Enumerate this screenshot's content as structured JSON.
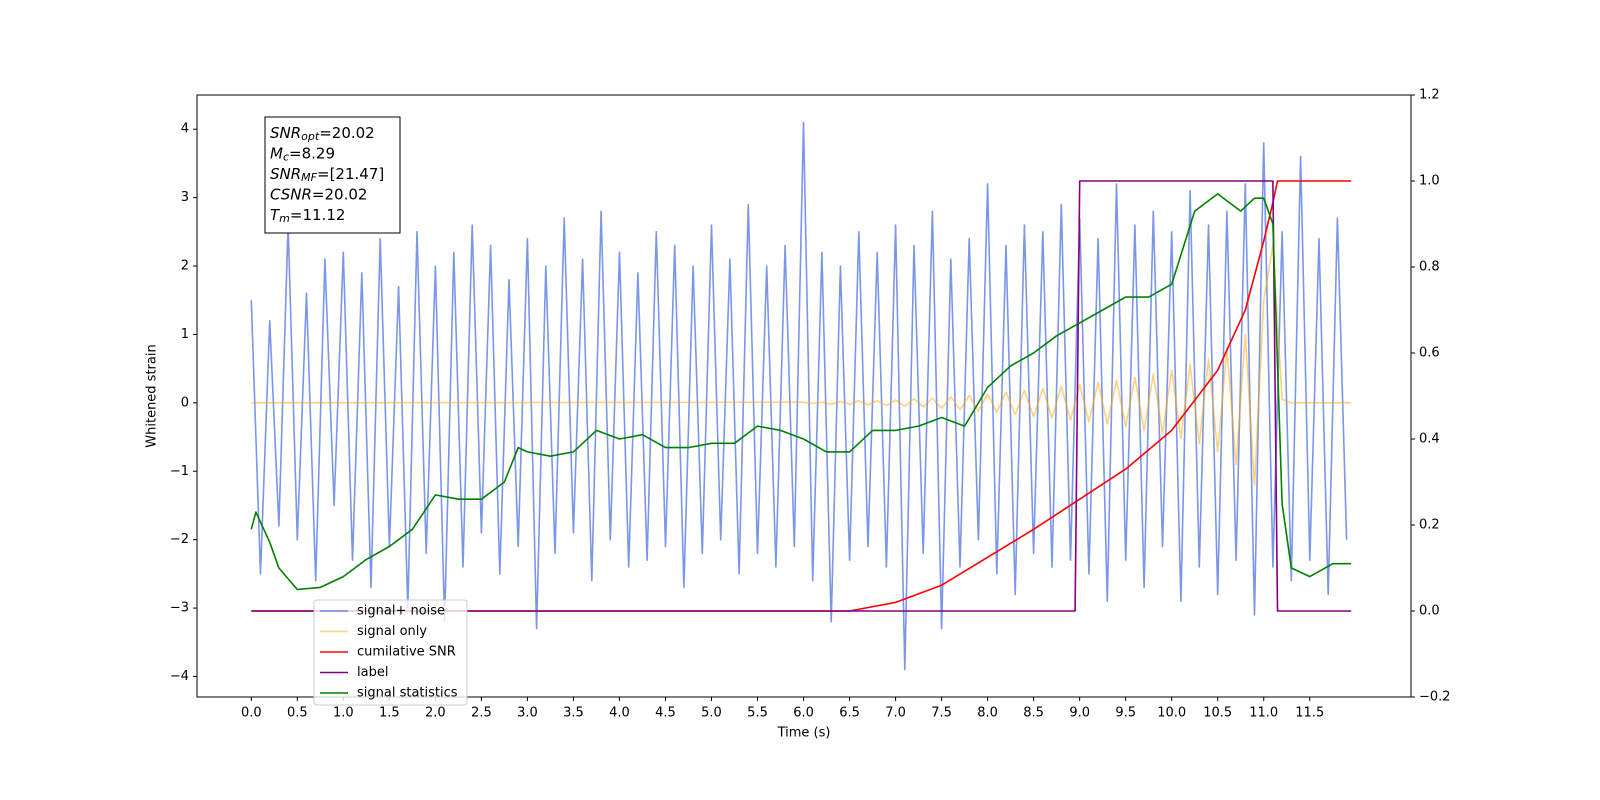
{
  "chart_data": {
    "type": "line",
    "xlabel": "Time (s)",
    "ylabel": "Whitened strain",
    "xlim": [
      -0.59,
      12.6
    ],
    "ylim": [
      -4.3,
      4.5
    ],
    "y2lim": [
      -0.2,
      1.2
    ],
    "xticks": [
      {
        "value": 0,
        "label": "0.0"
      },
      0.5,
      {
        "value": 1,
        "label": "1.0"
      },
      1.5,
      {
        "value": 2,
        "label": "2.0"
      },
      2.5,
      {
        "value": 3,
        "label": "3.0"
      },
      3.5,
      {
        "value": 4,
        "label": "4.0"
      },
      4.5,
      {
        "value": 5,
        "label": "5.0"
      },
      5.5,
      {
        "value": 6,
        "label": "6.0"
      },
      6.5,
      {
        "value": 7,
        "label": "7.0"
      },
      7.5,
      {
        "value": 8,
        "label": "8.0"
      },
      8.5,
      {
        "value": 9,
        "label": "9.0"
      },
      9.5,
      {
        "value": 10,
        "label": "10.0"
      },
      10.5,
      {
        "value": 11,
        "label": "11.0"
      },
      11.5
    ],
    "yticks": [
      {
        "value": -4,
        "label": "−4"
      },
      {
        "value": -3,
        "label": "−3"
      },
      {
        "value": -2,
        "label": "−2"
      },
      {
        "value": -1,
        "label": "−1"
      },
      0,
      1,
      2,
      3,
      4
    ],
    "y2ticks": [
      {
        "value": -0.2,
        "label": "−0.2"
      },
      {
        "value": 0,
        "label": "0.0"
      },
      0.2,
      0.4,
      0.6,
      0.8,
      {
        "value": 1,
        "label": "1.0"
      },
      1.2
    ],
    "legend": "lower left",
    "annotation": [
      {
        "name": "SNR",
        "sub": "opt",
        "text": "=20.02"
      },
      {
        "name": "M",
        "sub": "c",
        "text": "=8.29"
      },
      {
        "name": "SNR",
        "sub": "MF",
        "text": "=[21.47]"
      },
      {
        "name": "CSNR",
        "sub": "",
        "text": "=20.02"
      },
      {
        "name": "T",
        "sub": "m",
        "text": "=11.12"
      }
    ],
    "series": [
      {
        "name": "signal+ noise",
        "color": "#4169e1",
        "alpha": 0.7,
        "axis": "y",
        "x": [
          0,
          0.1,
          0.2,
          0.3,
          0.4,
          0.5,
          0.6,
          0.7,
          0.8,
          0.9,
          1,
          1.1,
          1.2,
          1.3,
          1.4,
          1.5,
          1.6,
          1.7,
          1.8,
          1.9,
          2,
          2.1,
          2.2,
          2.3,
          2.4,
          2.5,
          2.6,
          2.7,
          2.8,
          2.9,
          3,
          3.1,
          3.2,
          3.3,
          3.4,
          3.5,
          3.6,
          3.7,
          3.8,
          3.9,
          4,
          4.1,
          4.2,
          4.3,
          4.4,
          4.5,
          4.6,
          4.7,
          4.8,
          4.9,
          5,
          5.1,
          5.2,
          5.3,
          5.4,
          5.5,
          5.6,
          5.7,
          5.8,
          5.9,
          6,
          6.1,
          6.2,
          6.3,
          6.4,
          6.5,
          6.6,
          6.7,
          6.8,
          6.9,
          7,
          7.1,
          7.2,
          7.3,
          7.4,
          7.5,
          7.6,
          7.7,
          7.8,
          7.9,
          8,
          8.1,
          8.2,
          8.3,
          8.4,
          8.5,
          8.6,
          8.7,
          8.8,
          8.9,
          9,
          9.1,
          9.2,
          9.3,
          9.4,
          9.5,
          9.6,
          9.7,
          9.8,
          9.9,
          10,
          10.1,
          10.2,
          10.3,
          10.4,
          10.5,
          10.6,
          10.7,
          10.8,
          10.9,
          11,
          11.1,
          11.2,
          11.3,
          11.4,
          11.5,
          11.6,
          11.7,
          11.8,
          11.9
        ],
        "values": [
          1.5,
          -2.5,
          1.2,
          -1.8,
          2.6,
          -2.0,
          1.6,
          -2.6,
          2.1,
          -1.5,
          2.2,
          -2.3,
          1.9,
          -2.7,
          2.4,
          -2.1,
          1.7,
          -3.0,
          2.5,
          -2.2,
          2.0,
          -3.2,
          2.2,
          -2.4,
          2.6,
          -1.9,
          2.3,
          -2.5,
          1.8,
          -2.1,
          2.4,
          -3.3,
          2.0,
          -2.2,
          2.7,
          -1.9,
          2.1,
          -2.6,
          2.8,
          -2.0,
          2.2,
          -2.4,
          1.9,
          -2.3,
          2.5,
          -2.1,
          2.3,
          -2.7,
          2.0,
          -2.2,
          2.6,
          -2.0,
          2.1,
          -2.5,
          2.9,
          -2.2,
          2.0,
          -2.4,
          2.3,
          -2.1,
          4.1,
          -2.6,
          2.2,
          -3.2,
          2.0,
          -2.3,
          2.5,
          -2.1,
          2.2,
          -2.4,
          2.6,
          -3.9,
          2.3,
          -2.2,
          2.8,
          -3.3,
          2.1,
          -2.4,
          2.4,
          -2.0,
          3.2,
          -2.5,
          2.3,
          -2.8,
          2.6,
          -2.2,
          2.5,
          -2.4,
          2.9,
          -2.3,
          2.7,
          -2.5,
          2.4,
          -2.9,
          3.2,
          -2.3,
          2.6,
          -2.7,
          2.8,
          -2.1,
          2.5,
          -2.9,
          3.1,
          -2.4,
          2.6,
          -2.8,
          2.8,
          -2.3,
          3.2,
          -3.1,
          3.8,
          -2.4,
          2.5,
          -2.6,
          3.6,
          -2.3,
          2.4,
          -2.8,
          2.7,
          -2.0
        ]
      },
      {
        "name": "signal only",
        "color": "#ffa500",
        "alpha": 0.5,
        "axis": "y",
        "x": [
          0,
          6,
          6.1,
          6.2,
          6.3,
          6.4,
          6.5,
          6.6,
          6.7,
          6.8,
          6.9,
          7,
          7.1,
          7.2,
          7.3,
          7.4,
          7.5,
          7.6,
          7.7,
          7.8,
          7.9,
          8,
          8.1,
          8.2,
          8.3,
          8.4,
          8.5,
          8.6,
          8.7,
          8.8,
          8.9,
          9,
          9.1,
          9.2,
          9.3,
          9.4,
          9.5,
          9.6,
          9.7,
          9.8,
          9.9,
          10,
          10.1,
          10.2,
          10.3,
          10.4,
          10.5,
          10.6,
          10.7,
          10.8,
          10.9,
          11,
          11.1,
          11.2,
          11.3,
          11.95
        ],
        "values": [
          0,
          0.01,
          -0.01,
          0.01,
          -0.02,
          0.02,
          -0.02,
          0.03,
          -0.03,
          0.03,
          -0.04,
          0.04,
          -0.05,
          0.06,
          -0.06,
          0.07,
          -0.08,
          0.09,
          -0.1,
          0.11,
          -0.12,
          0.13,
          -0.14,
          0.16,
          -0.17,
          0.18,
          -0.2,
          0.21,
          -0.22,
          0.24,
          -0.25,
          0.27,
          -0.28,
          0.3,
          -0.31,
          0.33,
          -0.35,
          0.37,
          -0.4,
          0.42,
          -0.45,
          0.48,
          -0.52,
          0.56,
          -0.6,
          0.65,
          -0.72,
          0.8,
          -0.9,
          1.0,
          -1.2,
          1.5,
          2.3,
          0.05,
          0,
          0
        ]
      },
      {
        "name": "cumilative SNR",
        "color": "#ff0000",
        "alpha": 1,
        "axis": "y2",
        "x": [
          0,
          6.5,
          7,
          7.5,
          8,
          8.5,
          9,
          9.5,
          10,
          10.5,
          10.8,
          11,
          11.1,
          11.15,
          11.95
        ],
        "values": [
          0,
          0,
          0.02,
          0.06,
          0.125,
          0.19,
          0.26,
          0.33,
          0.42,
          0.56,
          0.7,
          0.86,
          0.95,
          1,
          1
        ]
      },
      {
        "name": "label",
        "color": "#800080",
        "alpha": 1,
        "axis": "y2",
        "x": [
          0,
          8.95,
          9,
          11.1,
          11.15,
          11.95
        ],
        "values": [
          0,
          0,
          1,
          1,
          0,
          0
        ]
      },
      {
        "name": "signal statistics",
        "color": "#008000",
        "alpha": 1,
        "axis": "y2",
        "x": [
          0,
          0.05,
          0.2,
          0.3,
          0.5,
          0.75,
          1,
          1.25,
          1.5,
          1.75,
          2,
          2.25,
          2.5,
          2.75,
          2.9,
          3,
          3.25,
          3.5,
          3.75,
          4,
          4.25,
          4.5,
          4.75,
          5,
          5.25,
          5.5,
          5.75,
          6,
          6.25,
          6.5,
          6.75,
          7,
          7.25,
          7.5,
          7.75,
          8,
          8.25,
          8.5,
          8.75,
          9,
          9.25,
          9.5,
          9.75,
          10,
          10.25,
          10.5,
          10.75,
          10.9,
          11,
          11.1,
          11.2,
          11.3,
          11.5,
          11.75,
          11.95
        ],
        "values": [
          0.19,
          0.23,
          0.16,
          0.1,
          0.05,
          0.055,
          0.08,
          0.12,
          0.15,
          0.19,
          0.27,
          0.26,
          0.26,
          0.3,
          0.38,
          0.37,
          0.36,
          0.37,
          0.42,
          0.4,
          0.41,
          0.38,
          0.38,
          0.39,
          0.39,
          0.43,
          0.42,
          0.4,
          0.37,
          0.37,
          0.42,
          0.42,
          0.43,
          0.45,
          0.43,
          0.52,
          0.57,
          0.6,
          0.64,
          0.67,
          0.7,
          0.73,
          0.73,
          0.76,
          0.93,
          0.97,
          0.93,
          0.96,
          0.96,
          0.9,
          0.25,
          0.1,
          0.08,
          0.11,
          0.11
        ]
      }
    ]
  }
}
